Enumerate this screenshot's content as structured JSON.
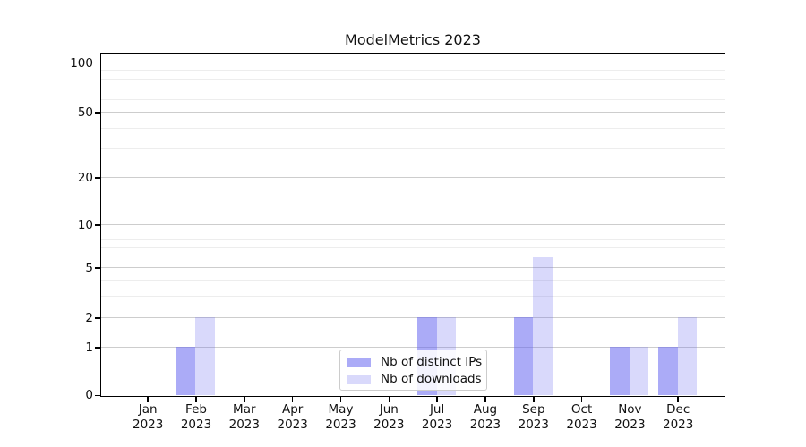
{
  "title": "ModelMetrics 2023",
  "colors": {
    "background": "#ffffff",
    "spine": "#000000",
    "grid_major": "#cdcdcd",
    "grid_minor": "#ededed",
    "bar_distinct_ips": "rgba(102,102,240,0.55)",
    "bar_downloads": "rgba(102,102,240,0.25)",
    "bar_distinct_ips_hex": "#abaaf7",
    "bar_downloads_hex": "#dcdcfa"
  },
  "legend": {
    "position": "lower center",
    "items": [
      {
        "label": "Nb of distinct IPs",
        "color": "rgba(102,102,240,0.55)"
      },
      {
        "label": "Nb of downloads",
        "color": "rgba(102,102,240,0.25)"
      }
    ]
  },
  "chart_data": {
    "type": "bar",
    "title": "ModelMetrics 2023",
    "categories": [
      "Jan 2023",
      "Feb 2023",
      "Mar 2023",
      "Apr 2023",
      "May 2023",
      "Jun 2023",
      "Jul 2023",
      "Aug 2023",
      "Sep 2023",
      "Oct 2023",
      "Nov 2023",
      "Dec 2023"
    ],
    "series": [
      {
        "name": "Nb of distinct IPs",
        "color": "rgba(102,102,240,0.55)",
        "values": [
          0,
          1,
          0,
          0,
          0,
          0,
          2,
          0,
          2,
          0,
          1,
          1
        ]
      },
      {
        "name": "Nb of downloads",
        "color": "rgba(102,102,240,0.25)",
        "values": [
          0,
          2,
          0,
          0,
          0,
          0,
          2,
          0,
          6,
          0,
          1,
          2
        ]
      }
    ],
    "xlabel": "",
    "ylabel": "",
    "y_scale": "symlog",
    "y_major_ticks": [
      0,
      1,
      2,
      5,
      10,
      20,
      50,
      100
    ],
    "y_minor_ticks": [
      3,
      4,
      6,
      7,
      8,
      9,
      30,
      40,
      60,
      70,
      80,
      90
    ],
    "ylim": [
      0,
      115
    ],
    "grid": true,
    "legend_position": "lower center"
  }
}
